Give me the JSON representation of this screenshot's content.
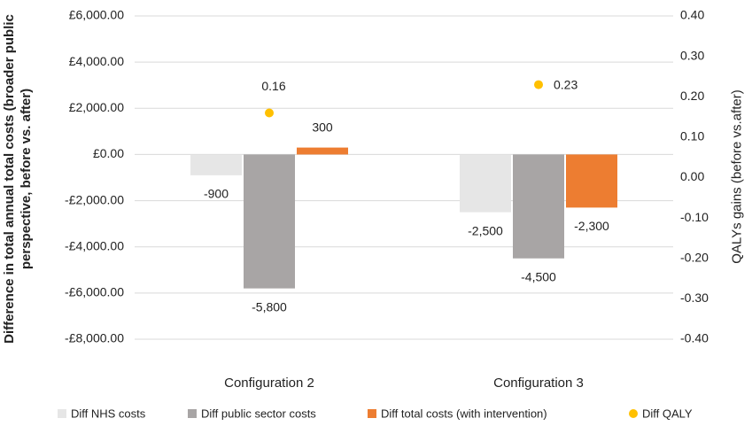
{
  "chart_data": {
    "type": "bar",
    "categories": [
      "Configuration 2",
      "Configuration 3"
    ],
    "y_label": "Difference in total annual total costs (broader public perspective, before vs. after)",
    "y2_label": "QALYs gains (before vs.after)",
    "ylim": [
      -8000,
      6000
    ],
    "yticks": [
      {
        "value": -8000,
        "label": "-£8,000.00"
      },
      {
        "value": -6000,
        "label": "-£6,000.00"
      },
      {
        "value": -4000,
        "label": "-£4,000.00"
      },
      {
        "value": -2000,
        "label": "-£2,000.00"
      },
      {
        "value": 0,
        "label": "£0.00"
      },
      {
        "value": 2000,
        "label": "£2,000.00"
      },
      {
        "value": 4000,
        "label": "£4,000.00"
      },
      {
        "value": 6000,
        "label": "£6,000.00"
      }
    ],
    "y2lim": [
      -0.4,
      0.4
    ],
    "y2ticks": [
      {
        "value": -0.4,
        "label": "-0.40"
      },
      {
        "value": -0.3,
        "label": "-0.30"
      },
      {
        "value": -0.2,
        "label": "-0.20"
      },
      {
        "value": -0.1,
        "label": "-0.10"
      },
      {
        "value": 0,
        "label": "0.00"
      },
      {
        "value": 0.1,
        "label": "0.10"
      },
      {
        "value": 0.2,
        "label": "0.20"
      },
      {
        "value": 0.3,
        "label": "0.30"
      },
      {
        "value": 0.4,
        "label": "0.40"
      }
    ],
    "y2_negative_color": "#ff0000",
    "grid": true,
    "legend": "bottom",
    "series": [
      {
        "name": "Diff NHS costs",
        "color": "#e6e6e6",
        "type": "bar",
        "values": [
          -900,
          -2500
        ],
        "value_labels": [
          "-900",
          "-2,500"
        ]
      },
      {
        "name": "Diff public sector costs",
        "color": "#a8a5a5",
        "type": "bar",
        "values": [
          -5800,
          -4500
        ],
        "value_labels": [
          "-5,800",
          "-4,500"
        ]
      },
      {
        "name": "Diff total costs (with intervention)",
        "color": "#ed7d31",
        "type": "bar",
        "values": [
          300,
          -2300
        ],
        "value_labels": [
          "300",
          "-2,300"
        ]
      },
      {
        "name": "Diff QALY",
        "color": "#ffc000",
        "type": "scatter",
        "axis": "y2",
        "values": [
          0.16,
          0.23
        ]
      }
    ]
  }
}
